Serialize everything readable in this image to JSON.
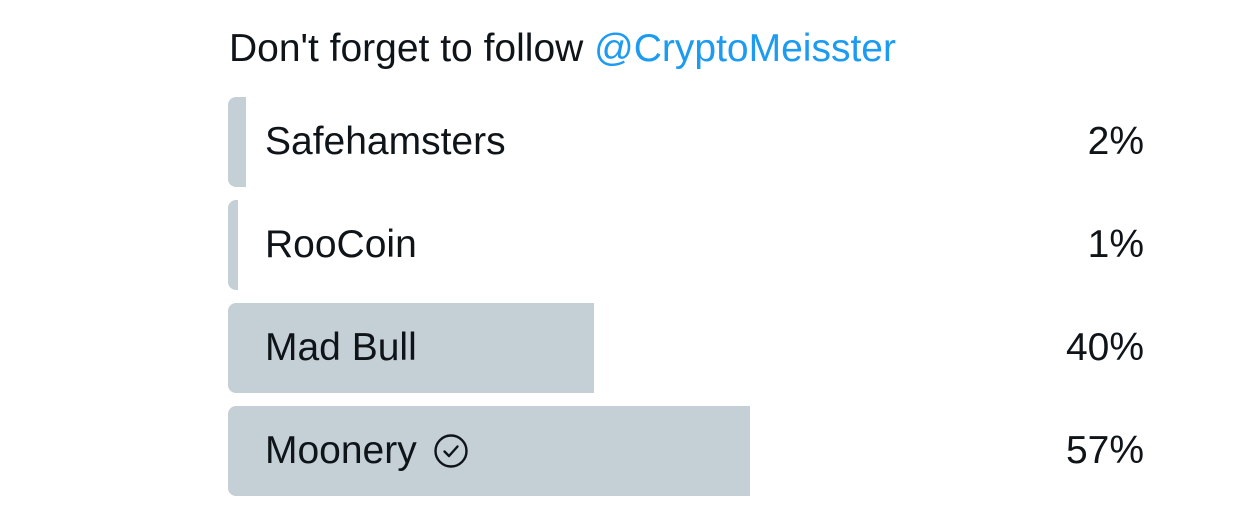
{
  "tweet": {
    "text_prefix": "Don't forget to follow ",
    "mention": "@CryptoMeisster"
  },
  "poll": {
    "options": [
      {
        "label": "Safehamsters",
        "percent_label": "2%",
        "fraction": 0.02,
        "winner": false
      },
      {
        "label": "RooCoin",
        "percent_label": "1%",
        "fraction": 0.01,
        "winner": false
      },
      {
        "label": "Mad Bull",
        "percent_label": "40%",
        "fraction": 0.4,
        "winner": false
      },
      {
        "label": "Moonery",
        "percent_label": "57%",
        "fraction": 0.57,
        "winner": true,
        "icon": "check-circle-icon"
      }
    ]
  },
  "colors": {
    "bar": "#c4cfd6",
    "mention": "#1d9bf0",
    "text": "#0f1419"
  }
}
